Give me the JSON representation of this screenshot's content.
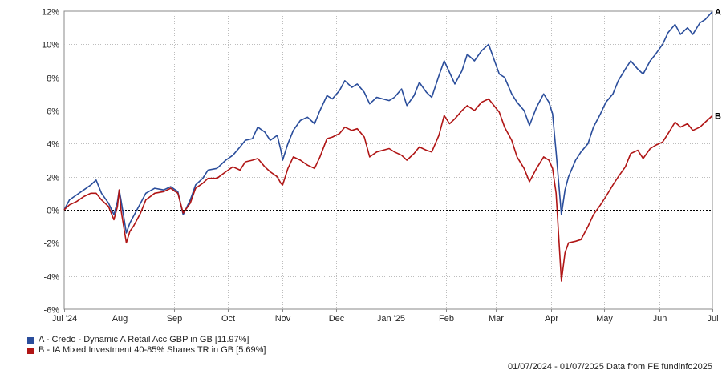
{
  "chart_data": {
    "type": "line",
    "title": "",
    "xlabel": "",
    "ylabel": "",
    "ylim": [
      -6,
      12
    ],
    "y_ticks": [
      "12%",
      "10%",
      "8%",
      "6%",
      "4%",
      "2%",
      "0%",
      "-2%",
      "-4%",
      "-6%"
    ],
    "x_ticks": [
      "Jul '24",
      "Aug",
      "Sep",
      "Oct",
      "Nov",
      "Dec",
      "Jan '25",
      "Feb",
      "Mar",
      "Apr",
      "May",
      "Jun",
      "Jul"
    ],
    "grid": true,
    "legend_position": "bottom-left",
    "x_range": [
      "2024-07-01",
      "2025-07-01"
    ],
    "series": [
      {
        "name": "A - Credo - Dynamic A Retail Acc GBP in GB [11.97%]",
        "end_label": "A",
        "color": "#2a4d9b",
        "points": [
          [
            "2024-07-01",
            0.0
          ],
          [
            "2024-07-04",
            0.6
          ],
          [
            "2024-07-08",
            0.9
          ],
          [
            "2024-07-12",
            1.2
          ],
          [
            "2024-07-16",
            1.5
          ],
          [
            "2024-07-19",
            1.8
          ],
          [
            "2024-07-22",
            1.0
          ],
          [
            "2024-07-26",
            0.4
          ],
          [
            "2024-07-29",
            -0.3
          ],
          [
            "2024-07-31",
            0.5
          ],
          [
            "2024-08-01",
            1.2
          ],
          [
            "2024-08-02",
            0.6
          ],
          [
            "2024-08-05",
            -1.4
          ],
          [
            "2024-08-07",
            -0.8
          ],
          [
            "2024-08-09",
            -0.4
          ],
          [
            "2024-08-13",
            0.4
          ],
          [
            "2024-08-16",
            1.0
          ],
          [
            "2024-08-21",
            1.3
          ],
          [
            "2024-08-26",
            1.2
          ],
          [
            "2024-08-30",
            1.4
          ],
          [
            "2024-09-03",
            1.1
          ],
          [
            "2024-09-06",
            -0.3
          ],
          [
            "2024-09-10",
            0.6
          ],
          [
            "2024-09-13",
            1.5
          ],
          [
            "2024-09-17",
            1.9
          ],
          [
            "2024-09-20",
            2.4
          ],
          [
            "2024-09-25",
            2.5
          ],
          [
            "2024-09-30",
            3.0
          ],
          [
            "2024-10-04",
            3.3
          ],
          [
            "2024-10-08",
            3.8
          ],
          [
            "2024-10-11",
            4.2
          ],
          [
            "2024-10-15",
            4.3
          ],
          [
            "2024-10-18",
            5.0
          ],
          [
            "2024-10-22",
            4.7
          ],
          [
            "2024-10-25",
            4.2
          ],
          [
            "2024-10-29",
            4.5
          ],
          [
            "2024-10-31",
            3.6
          ],
          [
            "2024-11-01",
            3.0
          ],
          [
            "2024-11-04",
            4.0
          ],
          [
            "2024-11-07",
            4.8
          ],
          [
            "2024-11-11",
            5.4
          ],
          [
            "2024-11-15",
            5.6
          ],
          [
            "2024-11-19",
            5.2
          ],
          [
            "2024-11-22",
            6.0
          ],
          [
            "2024-11-26",
            6.9
          ],
          [
            "2024-11-29",
            6.7
          ],
          [
            "2024-12-03",
            7.2
          ],
          [
            "2024-12-06",
            7.8
          ],
          [
            "2024-12-10",
            7.4
          ],
          [
            "2024-12-13",
            7.6
          ],
          [
            "2024-12-17",
            7.1
          ],
          [
            "2024-12-20",
            6.4
          ],
          [
            "2024-12-24",
            6.8
          ],
          [
            "2024-12-31",
            6.6
          ],
          [
            "2025-01-03",
            6.8
          ],
          [
            "2025-01-07",
            7.3
          ],
          [
            "2025-01-10",
            6.3
          ],
          [
            "2025-01-14",
            6.9
          ],
          [
            "2025-01-17",
            7.7
          ],
          [
            "2025-01-21",
            7.1
          ],
          [
            "2025-01-24",
            6.8
          ],
          [
            "2025-01-28",
            8.1
          ],
          [
            "2025-01-31",
            9.0
          ],
          [
            "2025-02-03",
            8.3
          ],
          [
            "2025-02-06",
            7.6
          ],
          [
            "2025-02-10",
            8.4
          ],
          [
            "2025-02-13",
            9.4
          ],
          [
            "2025-02-17",
            9.0
          ],
          [
            "2025-02-21",
            9.6
          ],
          [
            "2025-02-25",
            10.0
          ],
          [
            "2025-02-28",
            9.1
          ],
          [
            "2025-03-03",
            8.2
          ],
          [
            "2025-03-06",
            8.0
          ],
          [
            "2025-03-10",
            7.0
          ],
          [
            "2025-03-13",
            6.5
          ],
          [
            "2025-03-17",
            6.0
          ],
          [
            "2025-03-20",
            5.1
          ],
          [
            "2025-03-24",
            6.2
          ],
          [
            "2025-03-28",
            7.0
          ],
          [
            "2025-03-31",
            6.5
          ],
          [
            "2025-04-02",
            5.8
          ],
          [
            "2025-04-04",
            3.5
          ],
          [
            "2025-04-07",
            -0.3
          ],
          [
            "2025-04-09",
            1.2
          ],
          [
            "2025-04-11",
            2.0
          ],
          [
            "2025-04-15",
            3.0
          ],
          [
            "2025-04-18",
            3.5
          ],
          [
            "2025-04-22",
            4.0
          ],
          [
            "2025-04-25",
            5.0
          ],
          [
            "2025-04-29",
            5.8
          ],
          [
            "2025-05-02",
            6.5
          ],
          [
            "2025-05-06",
            7.0
          ],
          [
            "2025-05-09",
            7.8
          ],
          [
            "2025-05-13",
            8.5
          ],
          [
            "2025-05-16",
            9.0
          ],
          [
            "2025-05-20",
            8.5
          ],
          [
            "2025-05-23",
            8.2
          ],
          [
            "2025-05-27",
            9.0
          ],
          [
            "2025-05-30",
            9.4
          ],
          [
            "2025-06-03",
            10.0
          ],
          [
            "2025-06-06",
            10.7
          ],
          [
            "2025-06-10",
            11.2
          ],
          [
            "2025-06-13",
            10.6
          ],
          [
            "2025-06-17",
            11.0
          ],
          [
            "2025-06-20",
            10.6
          ],
          [
            "2025-06-24",
            11.3
          ],
          [
            "2025-06-27",
            11.5
          ],
          [
            "2025-07-01",
            11.97
          ]
        ]
      },
      {
        "name": "B - IA Mixed Investment 40-85% Shares TR in GB [5.69%]",
        "end_label": "B",
        "color": "#b01515",
        "points": [
          [
            "2024-07-01",
            0.0
          ],
          [
            "2024-07-04",
            0.3
          ],
          [
            "2024-07-08",
            0.5
          ],
          [
            "2024-07-12",
            0.8
          ],
          [
            "2024-07-16",
            1.0
          ],
          [
            "2024-07-19",
            1.0
          ],
          [
            "2024-07-22",
            0.6
          ],
          [
            "2024-07-26",
            0.2
          ],
          [
            "2024-07-29",
            -0.6
          ],
          [
            "2024-07-31",
            0.2
          ],
          [
            "2024-08-01",
            1.2
          ],
          [
            "2024-08-02",
            0.0
          ],
          [
            "2024-08-05",
            -2.0
          ],
          [
            "2024-08-07",
            -1.3
          ],
          [
            "2024-08-09",
            -1.0
          ],
          [
            "2024-08-13",
            -0.2
          ],
          [
            "2024-08-16",
            0.6
          ],
          [
            "2024-08-21",
            1.0
          ],
          [
            "2024-08-26",
            1.1
          ],
          [
            "2024-08-30",
            1.3
          ],
          [
            "2024-09-03",
            1.0
          ],
          [
            "2024-09-06",
            -0.2
          ],
          [
            "2024-09-10",
            0.4
          ],
          [
            "2024-09-13",
            1.3
          ],
          [
            "2024-09-17",
            1.6
          ],
          [
            "2024-09-20",
            1.9
          ],
          [
            "2024-09-25",
            1.9
          ],
          [
            "2024-09-30",
            2.3
          ],
          [
            "2024-10-04",
            2.6
          ],
          [
            "2024-10-08",
            2.4
          ],
          [
            "2024-10-11",
            2.9
          ],
          [
            "2024-10-15",
            3.0
          ],
          [
            "2024-10-18",
            3.1
          ],
          [
            "2024-10-22",
            2.6
          ],
          [
            "2024-10-25",
            2.3
          ],
          [
            "2024-10-29",
            2.0
          ],
          [
            "2024-10-31",
            1.6
          ],
          [
            "2024-11-01",
            1.5
          ],
          [
            "2024-11-04",
            2.5
          ],
          [
            "2024-11-07",
            3.2
          ],
          [
            "2024-11-11",
            3.0
          ],
          [
            "2024-11-15",
            2.7
          ],
          [
            "2024-11-19",
            2.5
          ],
          [
            "2024-11-22",
            3.2
          ],
          [
            "2024-11-26",
            4.3
          ],
          [
            "2024-11-29",
            4.4
          ],
          [
            "2024-12-03",
            4.6
          ],
          [
            "2024-12-06",
            5.0
          ],
          [
            "2024-12-10",
            4.8
          ],
          [
            "2024-12-13",
            4.9
          ],
          [
            "2024-12-17",
            4.4
          ],
          [
            "2024-12-20",
            3.2
          ],
          [
            "2024-12-24",
            3.5
          ],
          [
            "2024-12-31",
            3.7
          ],
          [
            "2025-01-03",
            3.5
          ],
          [
            "2025-01-07",
            3.3
          ],
          [
            "2025-01-10",
            3.0
          ],
          [
            "2025-01-14",
            3.4
          ],
          [
            "2025-01-17",
            3.8
          ],
          [
            "2025-01-21",
            3.6
          ],
          [
            "2025-01-24",
            3.5
          ],
          [
            "2025-01-28",
            4.5
          ],
          [
            "2025-01-31",
            5.7
          ],
          [
            "2025-02-03",
            5.2
          ],
          [
            "2025-02-06",
            5.5
          ],
          [
            "2025-02-10",
            6.0
          ],
          [
            "2025-02-13",
            6.3
          ],
          [
            "2025-02-17",
            6.0
          ],
          [
            "2025-02-21",
            6.5
          ],
          [
            "2025-02-25",
            6.7
          ],
          [
            "2025-02-28",
            6.3
          ],
          [
            "2025-03-03",
            5.9
          ],
          [
            "2025-03-06",
            5.0
          ],
          [
            "2025-03-10",
            4.2
          ],
          [
            "2025-03-13",
            3.2
          ],
          [
            "2025-03-17",
            2.5
          ],
          [
            "2025-03-20",
            1.7
          ],
          [
            "2025-03-24",
            2.5
          ],
          [
            "2025-03-28",
            3.2
          ],
          [
            "2025-03-31",
            3.0
          ],
          [
            "2025-04-02",
            2.5
          ],
          [
            "2025-04-04",
            1.0
          ],
          [
            "2025-04-07",
            -4.3
          ],
          [
            "2025-04-09",
            -2.6
          ],
          [
            "2025-04-11",
            -2.0
          ],
          [
            "2025-04-15",
            -1.9
          ],
          [
            "2025-04-18",
            -1.8
          ],
          [
            "2025-04-22",
            -1.0
          ],
          [
            "2025-04-25",
            -0.3
          ],
          [
            "2025-04-29",
            0.3
          ],
          [
            "2025-05-02",
            0.8
          ],
          [
            "2025-05-06",
            1.5
          ],
          [
            "2025-05-09",
            2.0
          ],
          [
            "2025-05-13",
            2.6
          ],
          [
            "2025-05-16",
            3.4
          ],
          [
            "2025-05-20",
            3.6
          ],
          [
            "2025-05-23",
            3.1
          ],
          [
            "2025-05-27",
            3.7
          ],
          [
            "2025-05-30",
            3.9
          ],
          [
            "2025-06-03",
            4.1
          ],
          [
            "2025-06-06",
            4.6
          ],
          [
            "2025-06-10",
            5.3
          ],
          [
            "2025-06-13",
            5.0
          ],
          [
            "2025-06-17",
            5.2
          ],
          [
            "2025-06-20",
            4.8
          ],
          [
            "2025-06-24",
            5.0
          ],
          [
            "2025-06-27",
            5.3
          ],
          [
            "2025-07-01",
            5.69
          ]
        ]
      }
    ]
  },
  "footer": {
    "text": "01/07/2024 - 01/07/2025 Data from FE fundinfo2025"
  }
}
